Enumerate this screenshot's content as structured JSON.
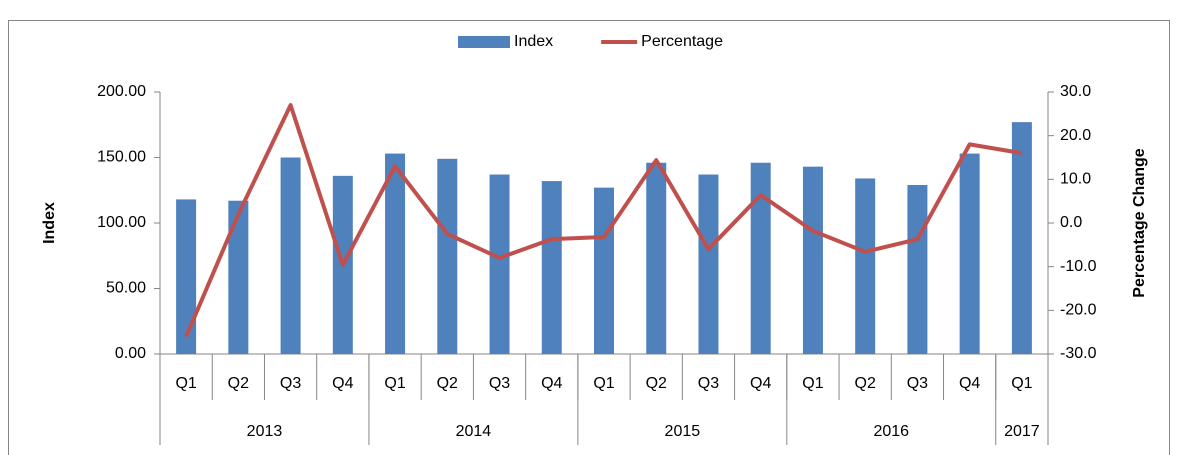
{
  "chart_data": {
    "type": "bar_line",
    "categories": [
      "Q1",
      "Q2",
      "Q3",
      "Q4",
      "Q1",
      "Q2",
      "Q3",
      "Q4",
      "Q1",
      "Q2",
      "Q3",
      "Q4",
      "Q1",
      "Q2",
      "Q3",
      "Q4",
      "Q1"
    ],
    "x_groups": [
      {
        "label": "2013",
        "count": 4
      },
      {
        "label": "2014",
        "count": 4
      },
      {
        "label": "2015",
        "count": 4
      },
      {
        "label": "2016",
        "count": 4
      },
      {
        "label": "2017",
        "count": 1
      }
    ],
    "series": [
      {
        "name": "Index",
        "type": "bar",
        "color": "#4f81bd",
        "values": [
          118,
          117,
          150,
          136,
          153,
          149,
          137,
          132,
          127,
          146,
          137,
          146,
          143,
          134,
          129,
          153,
          177
        ]
      },
      {
        "name": "Percentage",
        "type": "line",
        "axis": "y2",
        "color": "#c0504d",
        "values": [
          -26,
          2,
          27,
          -9.6,
          13,
          -2.5,
          -8,
          -3.7,
          -3.2,
          14.4,
          -6,
          6.4,
          -1.8,
          -6.6,
          -3.7,
          18,
          16
        ]
      }
    ],
    "ylabel": "Index",
    "y2label": "Percentage Change",
    "ylim": [
      0,
      200
    ],
    "yticks": [
      {
        "value": 0,
        "label": "0.00"
      },
      {
        "value": 50,
        "label": "50.00"
      },
      {
        "value": 100,
        "label": "100.00"
      },
      {
        "value": 150,
        "label": "150.00"
      },
      {
        "value": 200,
        "label": "200.00"
      }
    ],
    "y2lim": [
      -30,
      30
    ],
    "y2ticks": [
      {
        "value": -30,
        "label": "-30.0"
      },
      {
        "value": -20,
        "label": "-20.0"
      },
      {
        "value": -10,
        "label": "-10.0"
      },
      {
        "value": 0,
        "label": "0.0"
      },
      {
        "value": 10,
        "label": "10.0"
      },
      {
        "value": 20,
        "label": "20.0"
      },
      {
        "value": 30,
        "label": "30.0"
      }
    ],
    "legend": "top"
  }
}
